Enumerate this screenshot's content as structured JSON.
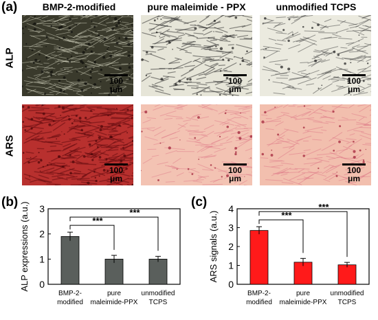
{
  "figure": {
    "panel_a": "(a)",
    "panel_b": "(b)",
    "panel_c": "(c)",
    "columns": [
      "BMP-2-modified",
      "pure maleimide - PPX",
      "unmodified TCPS"
    ],
    "rows": [
      "ALP",
      "ARS"
    ],
    "scale_bar": "100 μm"
  },
  "chart_data": [
    {
      "type": "bar",
      "categories": [
        "BMP-2-\nmodified",
        "pure\nmaleimide-PPX",
        "unmodified\nTCPS"
      ],
      "values": [
        1.9,
        1.0,
        1.0
      ],
      "errors": [
        0.17,
        0.15,
        0.11
      ],
      "ylabel": "ALP expressions (a.u.)",
      "ylim": [
        0,
        3
      ],
      "yticks": [
        0,
        1,
        2,
        3
      ],
      "bar_color": "#5a5f5c",
      "significance": [
        {
          "from": 0,
          "to": 1,
          "label": "***"
        },
        {
          "from": 0,
          "to": 2,
          "label": "***"
        }
      ],
      "legend": false,
      "grid": false
    },
    {
      "type": "bar",
      "categories": [
        "BMP-2-\nmodified",
        "pure\nmaleimide-PPX",
        "unmodified\nTCPS"
      ],
      "values": [
        2.85,
        1.17,
        1.03
      ],
      "errors": [
        0.2,
        0.2,
        0.13
      ],
      "ylabel": "ARS signals (a.u.)",
      "ylim": [
        0,
        4
      ],
      "yticks": [
        0,
        1,
        2,
        3,
        4
      ],
      "bar_color": "#ff1a1a",
      "significance": [
        {
          "from": 0,
          "to": 1,
          "label": "***"
        },
        {
          "from": 0,
          "to": 2,
          "label": "***"
        }
      ],
      "legend": false,
      "grid": false
    }
  ]
}
